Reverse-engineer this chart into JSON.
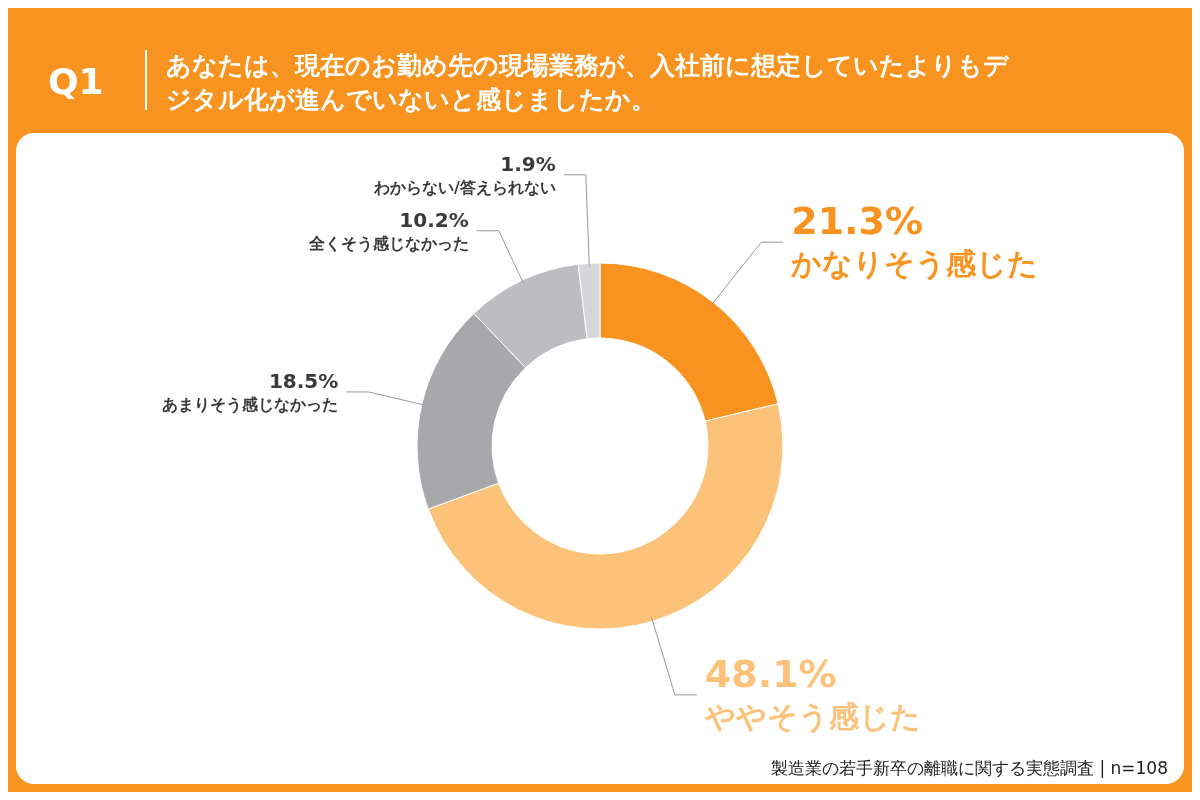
{
  "chart_data": {
    "type": "donut",
    "title": "あなたは、現在のお勤め先の現場業務が、入社前に想定していたよりもデジタル化が進んでいないと感じましたか。",
    "categories": [
      "かなりそう感じた",
      "ややそう感じた",
      "あまりそう感じなかった",
      "全くそう感じなかった",
      "わからない/答えられない"
    ],
    "values": [
      21.3,
      48.1,
      18.5,
      10.2,
      1.9
    ],
    "colors": [
      "#f7931e",
      "#fcc27a",
      "#a8a7ab",
      "#bdbcc0",
      "#d6d5d8"
    ],
    "value_labels": [
      "21.3%",
      "48.1%",
      "18.5%",
      "10.2%",
      "1.9%"
    ],
    "annotations": [
      "Q1",
      "製造業の若手新卒の離職に関する実態調査 | n=108"
    ]
  }
}
